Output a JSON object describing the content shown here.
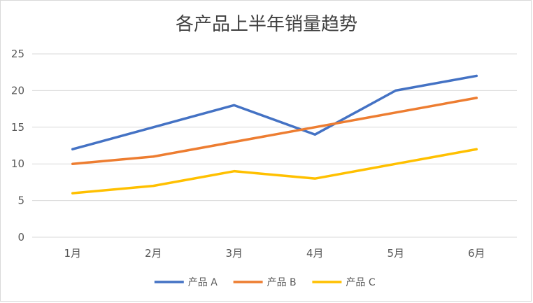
{
  "chart_data": {
    "type": "line",
    "title": "各产品上半年销量趋势",
    "categories": [
      "1月",
      "2月",
      "3月",
      "4月",
      "5月",
      "6月"
    ],
    "series": [
      {
        "name": "产品 A",
        "values": [
          12,
          15,
          18,
          14,
          20,
          22
        ],
        "color": "#4472C4"
      },
      {
        "name": "产品 B",
        "values": [
          10,
          11,
          13,
          15,
          17,
          19
        ],
        "color": "#ED7D31"
      },
      {
        "name": "产品 C",
        "values": [
          6,
          7,
          9,
          8,
          10,
          12
        ],
        "color": "#FFC000"
      }
    ],
    "yticks": [
      0,
      5,
      10,
      15,
      20,
      25
    ],
    "ylim": [
      0,
      25
    ],
    "grid": true,
    "legend_position": "bottom",
    "xlabel": "",
    "ylabel": ""
  }
}
